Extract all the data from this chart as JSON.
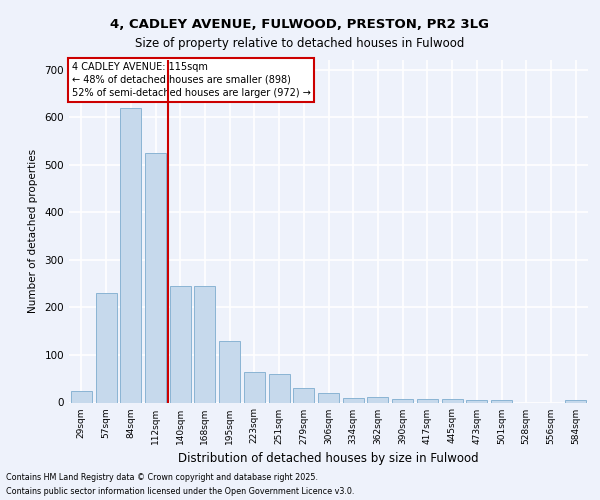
{
  "title_line1": "4, CADLEY AVENUE, FULWOOD, PRESTON, PR2 3LG",
  "title_line2": "Size of property relative to detached houses in Fulwood",
  "xlabel": "Distribution of detached houses by size in Fulwood",
  "ylabel": "Number of detached properties",
  "categories": [
    "29sqm",
    "57sqm",
    "84sqm",
    "112sqm",
    "140sqm",
    "168sqm",
    "195sqm",
    "223sqm",
    "251sqm",
    "279sqm",
    "306sqm",
    "334sqm",
    "362sqm",
    "390sqm",
    "417sqm",
    "445sqm",
    "473sqm",
    "501sqm",
    "528sqm",
    "556sqm",
    "584sqm"
  ],
  "values": [
    25,
    230,
    620,
    525,
    245,
    245,
    130,
    65,
    60,
    30,
    20,
    10,
    12,
    7,
    8,
    7,
    5,
    5,
    0,
    0,
    5
  ],
  "bar_color": "#c6d9ec",
  "bar_edge_color": "#8ab4d4",
  "background_color": "#eef2fb",
  "grid_color": "#ffffff",
  "property_line_x": 3.5,
  "annotation_line1": "4 CADLEY AVENUE: 115sqm",
  "annotation_line2": "← 48% of detached houses are smaller (898)",
  "annotation_line3": "52% of semi-detached houses are larger (972) →",
  "annotation_box_color": "#ffffff",
  "annotation_box_edge_color": "#cc0000",
  "property_line_color": "#cc0000",
  "ylim": [
    0,
    720
  ],
  "yticks": [
    0,
    100,
    200,
    300,
    400,
    500,
    600,
    700
  ],
  "footer_line1": "Contains HM Land Registry data © Crown copyright and database right 2025.",
  "footer_line2": "Contains public sector information licensed under the Open Government Licence v3.0."
}
